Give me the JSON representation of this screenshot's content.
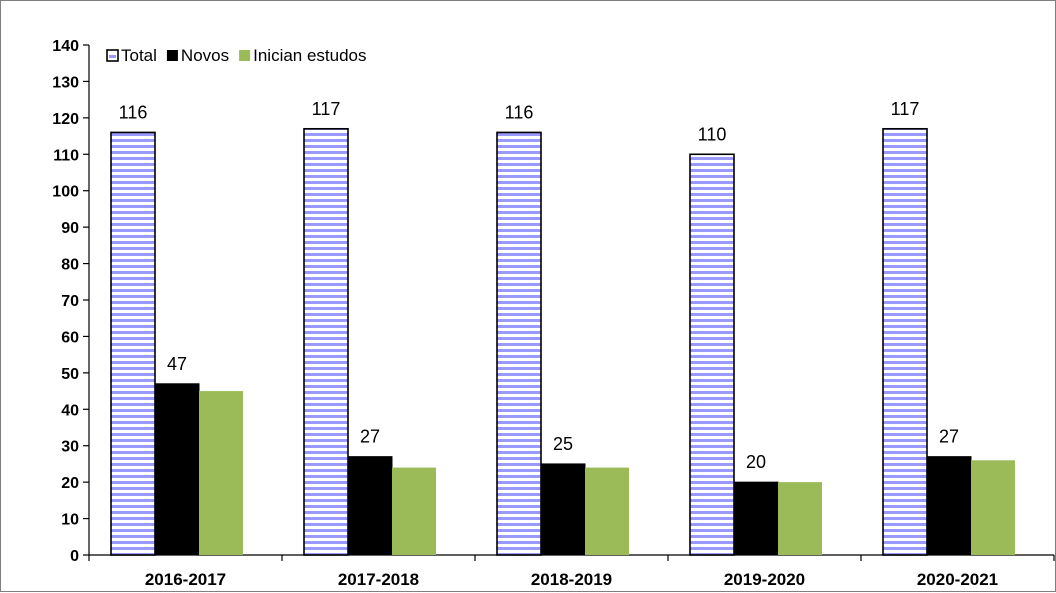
{
  "chart_data": {
    "type": "bar",
    "categories": [
      "2016-2017",
      "2017-2018",
      "2018-2019",
      "2019-2020",
      "2020-2021"
    ],
    "series": [
      {
        "name": "Total",
        "values": [
          116,
          117,
          116,
          110,
          117
        ],
        "color": "#9999ff",
        "fill_pattern": "horizontal-stripes",
        "labels_shown": true
      },
      {
        "name": "Novos",
        "values": [
          47,
          27,
          25,
          20,
          27
        ],
        "color": "#000000",
        "labels_shown": true
      },
      {
        "name": "Inician estudos",
        "values": [
          45,
          24,
          24,
          20,
          26
        ],
        "color": "#9bbb59",
        "labels_shown": false
      }
    ],
    "ylim": [
      0,
      140
    ],
    "ytick_step": 10,
    "yticks": [
      "0",
      "10",
      "20",
      "30",
      "40",
      "50",
      "60",
      "70",
      "80",
      "90",
      "100",
      "110",
      "120",
      "130",
      "140"
    ],
    "title": "",
    "xlabel": "",
    "ylabel": "",
    "grid": false,
    "legend_position": "top-left"
  }
}
